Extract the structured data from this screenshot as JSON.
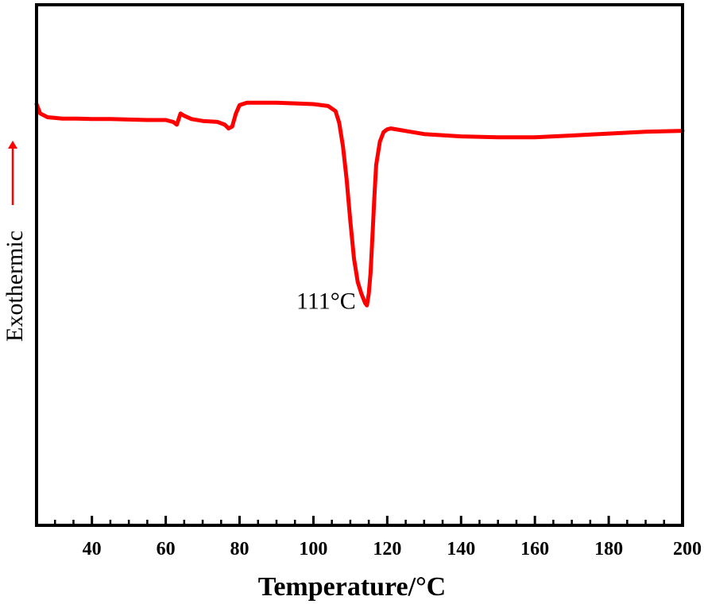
{
  "chart_data": {
    "type": "line",
    "title": "",
    "xlabel": "Temperature/°C",
    "ylabel": "Exothermic",
    "xlim": [
      25,
      200
    ],
    "ylim": [
      0,
      100
    ],
    "x_ticks": [
      40,
      60,
      80,
      100,
      120,
      140,
      160,
      180,
      200
    ],
    "x_minor_step": 5,
    "yticks_shown": false,
    "grid": false,
    "legend": "none",
    "line_color": "#ff0000",
    "arrow_color": "#ff0000",
    "annotation": {
      "text": "111°C",
      "x": 114.5,
      "y": 57
    },
    "series": [
      {
        "color": "#ff0000",
        "points": [
          [
            25,
            100
          ],
          [
            26,
            98
          ],
          [
            28,
            97.2
          ],
          [
            32,
            96.9
          ],
          [
            36,
            96.9
          ],
          [
            40,
            96.8
          ],
          [
            45,
            96.8
          ],
          [
            50,
            96.7
          ],
          [
            55,
            96.6
          ],
          [
            60,
            96.6
          ],
          [
            62,
            96.2
          ],
          [
            63,
            95.6
          ],
          [
            64,
            98.0
          ],
          [
            65,
            97.5
          ],
          [
            67,
            96.8
          ],
          [
            70,
            96.4
          ],
          [
            74,
            96.2
          ],
          [
            76,
            95.6
          ],
          [
            77,
            94.8
          ],
          [
            78,
            95.2
          ],
          [
            79,
            98.0
          ],
          [
            80,
            99.8
          ],
          [
            82,
            100.3
          ],
          [
            90,
            100.3
          ],
          [
            100,
            100.0
          ],
          [
            104,
            99.6
          ],
          [
            106,
            98.5
          ],
          [
            107,
            96.0
          ],
          [
            108,
            91.0
          ],
          [
            109,
            84.0
          ],
          [
            110,
            75.0
          ],
          [
            111,
            67.0
          ],
          [
            112,
            62.0
          ],
          [
            113,
            59.5
          ],
          [
            114,
            57.5
          ],
          [
            114.5,
            57.0
          ],
          [
            115,
            59.5
          ],
          [
            115.5,
            64.0
          ],
          [
            116,
            72.0
          ],
          [
            116.5,
            80.0
          ],
          [
            117,
            87.0
          ],
          [
            118,
            92.0
          ],
          [
            119,
            94.0
          ],
          [
            120,
            94.6
          ],
          [
            121,
            94.8
          ],
          [
            124,
            94.4
          ],
          [
            130,
            93.6
          ],
          [
            140,
            93.1
          ],
          [
            150,
            92.9
          ],
          [
            160,
            92.9
          ],
          [
            170,
            93.3
          ],
          [
            180,
            93.7
          ],
          [
            190,
            94.1
          ],
          [
            200,
            94.3
          ]
        ]
      }
    ]
  }
}
